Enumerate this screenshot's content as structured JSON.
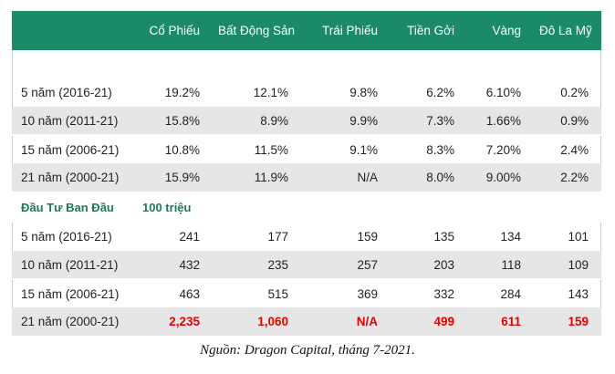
{
  "headers": [
    "",
    "Cổ Phiếu",
    "Bất Động Sản",
    "Trái Phiếu",
    "Tiền Gởi",
    "Vàng",
    "Đô La Mỹ"
  ],
  "returns": [
    {
      "label": "5 năm (2016-21)",
      "values": [
        "19.2%",
        "12.1%",
        "9.8%",
        "6.2%",
        "6.10%",
        "0.2%"
      ]
    },
    {
      "label": "10 năm (2011-21)",
      "values": [
        "15.8%",
        "8.9%",
        "9.9%",
        "7.3%",
        "1.66%",
        "0.9%"
      ]
    },
    {
      "label": "15 năm (2006-21)",
      "values": [
        "10.8%",
        "11.5%",
        "9.1%",
        "8.3%",
        "7.20%",
        "2.4%"
      ]
    },
    {
      "label": "21 năm (2000-21)",
      "values": [
        "15.9%",
        "11.9%",
        "N/A",
        "8.0%",
        "9.00%",
        "2.2%"
      ]
    }
  ],
  "section": {
    "title": "Đầu Tư Ban Đầu",
    "unit": "100 triệu"
  },
  "investment": [
    {
      "label": "5 năm (2016-21)",
      "values": [
        "241",
        "177",
        "159",
        "135",
        "134",
        "101"
      ]
    },
    {
      "label": "10 năm (2011-21)",
      "values": [
        "432",
        "235",
        "257",
        "203",
        "118",
        "109"
      ]
    },
    {
      "label": "15 năm (2006-21)",
      "values": [
        "463",
        "515",
        "369",
        "332",
        "284",
        "143"
      ]
    },
    {
      "label": "21 năm (2000-21)",
      "values": [
        "2,235",
        "1,060",
        "N/A",
        "499",
        "611",
        "159"
      ]
    }
  ],
  "source": {
    "label": "Nguồn:",
    "text": "Dragon Capital, tháng 7-2021."
  },
  "colors": {
    "header_bg": "#1a8a68",
    "highlight": "#e60000",
    "section_title": "#1a7a5a"
  }
}
